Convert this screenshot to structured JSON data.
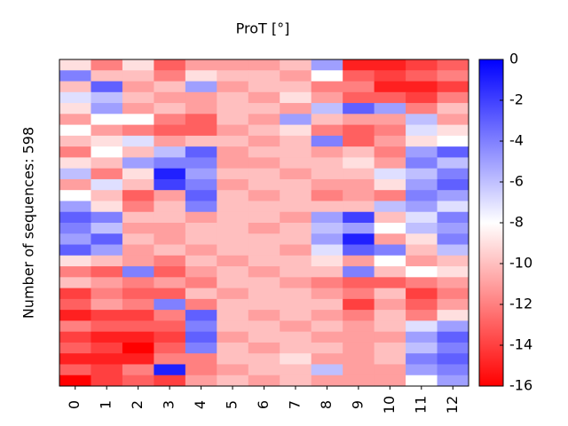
{
  "chart_data": {
    "type": "heatmap",
    "title": "ProT [°]",
    "ylabel": "Number of sequences: 598",
    "categories": [
      "0",
      "1",
      "2",
      "3",
      "4",
      "5",
      "6",
      "7",
      "8",
      "9",
      "10",
      "11",
      "12"
    ],
    "zlim": [
      -16,
      0
    ],
    "colorbar_ticks": [
      0,
      -2,
      -4,
      -6,
      -8,
      -10,
      -12,
      -14,
      -16
    ],
    "colormap": {
      "low": "#ff0000",
      "mid": "#ffffff",
      "high": "#0000ff"
    },
    "z": [
      [
        -9,
        -12,
        -9,
        -13,
        -11,
        -11,
        -11,
        -10,
        -5,
        -15,
        -15,
        -14,
        -13
      ],
      [
        -4,
        -10,
        -10,
        -12,
        -9,
        -10,
        -10,
        -11,
        -8,
        -13,
        -14,
        -13,
        -12
      ],
      [
        -10,
        -3,
        -11,
        -10,
        -5,
        -11,
        -10,
        -10,
        -12,
        -12,
        -15,
        -15,
        -14
      ],
      [
        -7,
        -6,
        -10,
        -11,
        -11,
        -10,
        -11,
        -9,
        -11,
        -13,
        -13,
        -14,
        -12
      ],
      [
        -9,
        -5,
        -11,
        -10,
        -11,
        -10,
        -10,
        -11,
        -6,
        -3,
        -5,
        -12,
        -10
      ],
      [
        -11,
        -8,
        -8,
        -12,
        -13,
        -10,
        -11,
        -5,
        -10,
        -11,
        -11,
        -6,
        -11
      ],
      [
        -8,
        -11,
        -12,
        -13,
        -13,
        -11,
        -10,
        -9,
        -12,
        -13,
        -12,
        -7,
        -9
      ],
      [
        -10,
        -9,
        -7,
        -11,
        -10,
        -10,
        -11,
        -10,
        -4,
        -13,
        -11,
        -9,
        -8
      ],
      [
        -12,
        -8,
        -10,
        -6,
        -3,
        -11,
        -10,
        -10,
        -11,
        -10,
        -12,
        -5,
        -3
      ],
      [
        -9,
        -10,
        -5,
        -4,
        -4,
        -11,
        -11,
        -10,
        -10,
        -9,
        -11,
        -4,
        -6
      ],
      [
        -6,
        -12,
        -9,
        -1,
        -5,
        -10,
        -10,
        -11,
        -10,
        -10,
        -7,
        -6,
        -4
      ],
      [
        -11,
        -7,
        -10,
        -2,
        -4,
        -11,
        -10,
        -10,
        -11,
        -11,
        -9,
        -5,
        -3
      ],
      [
        -8,
        -10,
        -13,
        -11,
        -3,
        -10,
        -11,
        -10,
        -12,
        -11,
        -12,
        -4,
        -5
      ],
      [
        -5,
        -9,
        -12,
        -10,
        -4,
        -10,
        -10,
        -10,
        -10,
        -10,
        -6,
        -5,
        -7
      ],
      [
        -3,
        -4,
        -10,
        -10,
        -11,
        -10,
        -10,
        -11,
        -5,
        -2,
        -10,
        -7,
        -4
      ],
      [
        -4,
        -6,
        -11,
        -11,
        -10,
        -10,
        -11,
        -10,
        -6,
        -5,
        -8,
        -6,
        -5
      ],
      [
        -5,
        -3,
        -10,
        -11,
        -10,
        -10,
        -10,
        -10,
        -5,
        -1,
        -11,
        -9,
        -4
      ],
      [
        -3,
        -5,
        -11,
        -10,
        -11,
        -10,
        -10,
        -11,
        -7,
        -3,
        -4,
        -10,
        -6
      ],
      [
        -9,
        -10,
        -11,
        -12,
        -10,
        -11,
        -10,
        -10,
        -9,
        -11,
        -8,
        -11,
        -10
      ],
      [
        -12,
        -13,
        -4,
        -13,
        -11,
        -10,
        -11,
        -10,
        -10,
        -4,
        -10,
        -8,
        -9
      ],
      [
        -10,
        -11,
        -12,
        -11,
        -12,
        -10,
        -10,
        -11,
        -12,
        -13,
        -13,
        -12,
        -11
      ],
      [
        -14,
        -12,
        -13,
        -13,
        -10,
        -11,
        -10,
        -10,
        -11,
        -12,
        -10,
        -14,
        -12
      ],
      [
        -13,
        -11,
        -12,
        -4,
        -12,
        -10,
        -10,
        -10,
        -10,
        -14,
        -11,
        -13,
        -11
      ],
      [
        -15,
        -14,
        -14,
        -12,
        -3,
        -10,
        -11,
        -10,
        -11,
        -12,
        -10,
        -12,
        -9
      ],
      [
        -12,
        -13,
        -13,
        -13,
        -4,
        -10,
        -10,
        -11,
        -10,
        -11,
        -10,
        -7,
        -5
      ],
      [
        -14,
        -15,
        -15,
        -14,
        -3,
        -11,
        -10,
        -10,
        -11,
        -11,
        -11,
        -5,
        -3
      ],
      [
        -13,
        -14,
        -16,
        -13,
        -4,
        -10,
        -11,
        -10,
        -10,
        -11,
        -10,
        -6,
        -4
      ],
      [
        -15,
        -15,
        -15,
        -12,
        -12,
        -10,
        -10,
        -9,
        -11,
        -11,
        -10,
        -4,
        -3
      ],
      [
        -13,
        -14,
        -12,
        -1,
        -12,
        -11,
        -10,
        -10,
        -6,
        -11,
        -11,
        -5,
        -4
      ],
      [
        -16,
        -14,
        -13,
        -14,
        -11,
        -10,
        -11,
        -10,
        -11,
        -11,
        -11,
        -8,
        -5
      ]
    ]
  }
}
